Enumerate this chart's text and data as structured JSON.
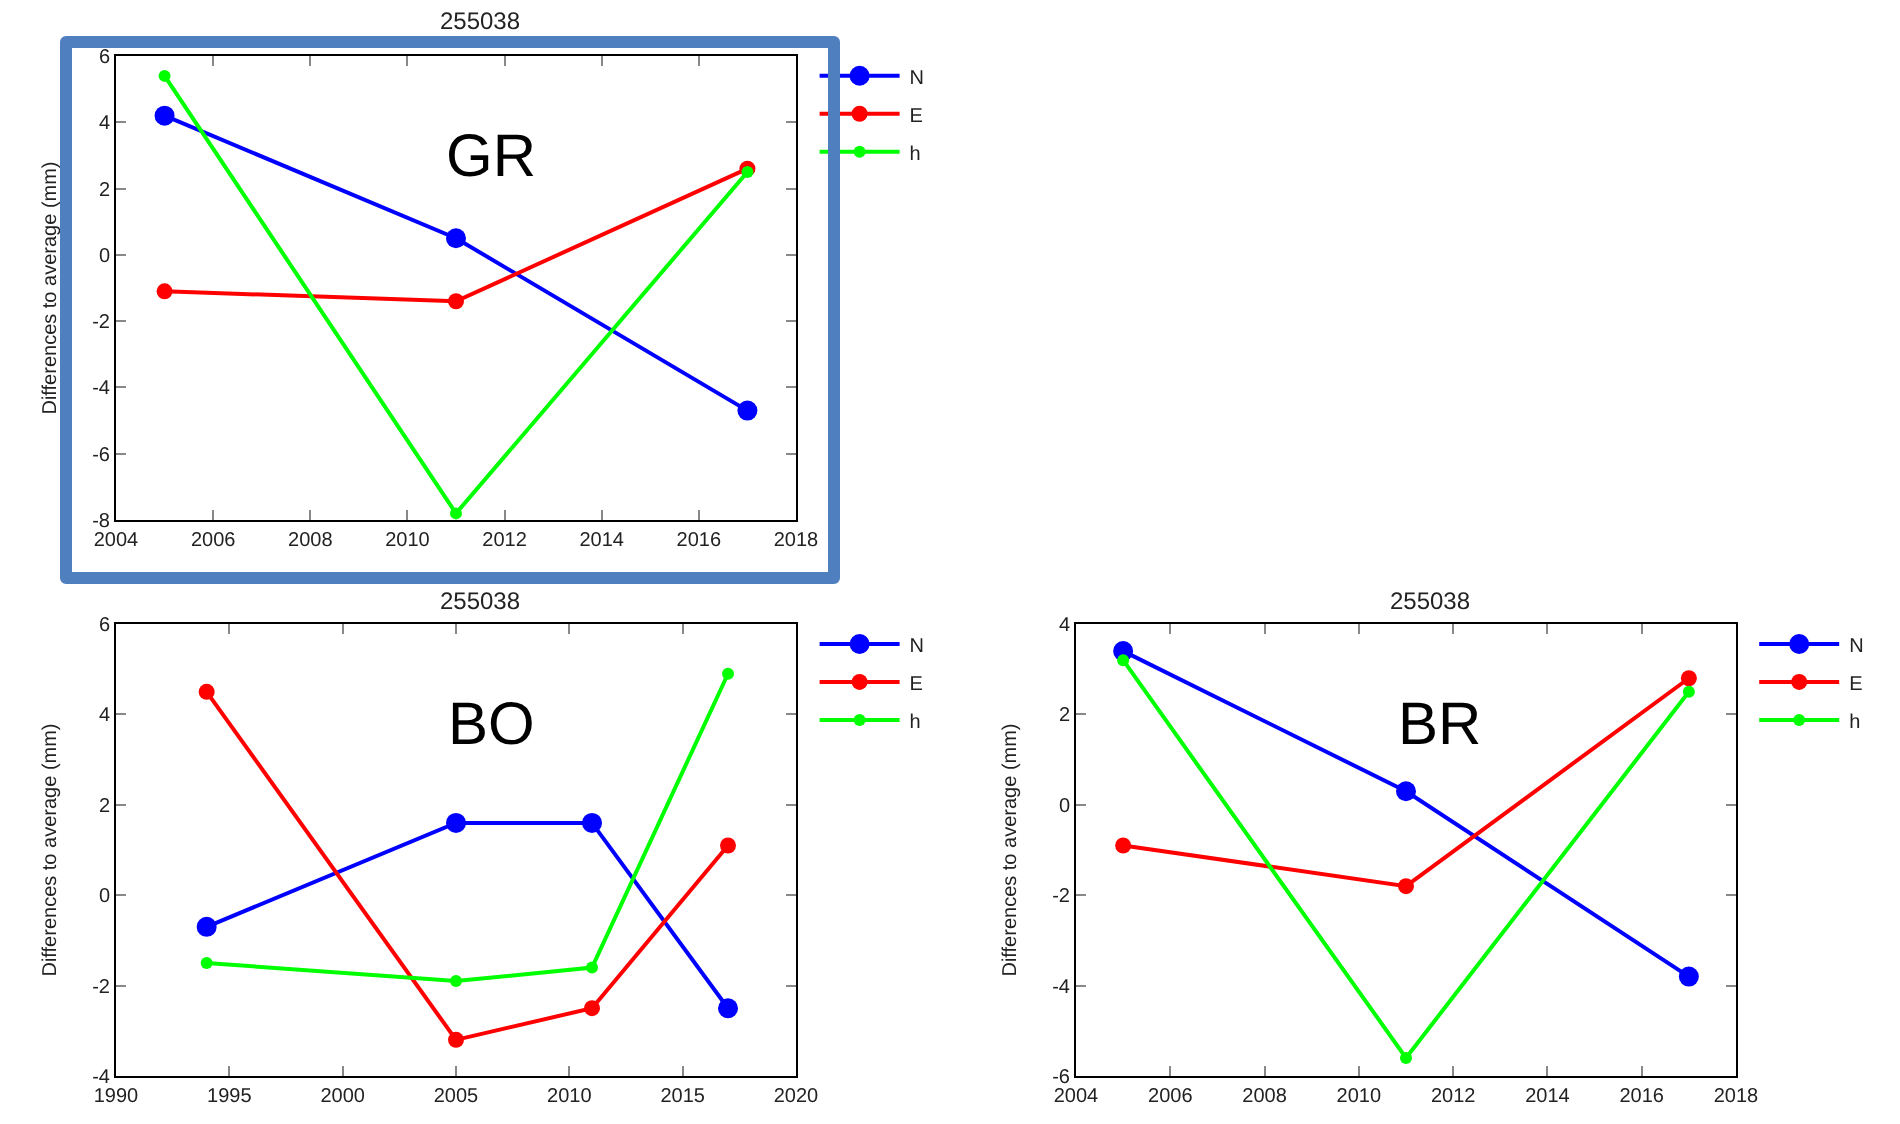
{
  "chart_data": [
    {
      "type": "line",
      "title": "255038",
      "ylabel": "Differences to average (mm)",
      "annotations": [
        "GR"
      ],
      "x": [
        2005,
        2011,
        2017
      ],
      "xlim": [
        2004,
        2018
      ],
      "xticks": [
        2004,
        2006,
        2008,
        2010,
        2012,
        2014,
        2016,
        2018
      ],
      "ylim": [
        -8,
        6
      ],
      "yticks": [
        -8,
        -6,
        -4,
        -2,
        0,
        2,
        4,
        6
      ],
      "legend": "top right",
      "marker": "circle",
      "line_style": "solid",
      "series": [
        {
          "name": "N",
          "color": "#0000ff",
          "values": [
            4.2,
            0.5,
            -4.7
          ]
        },
        {
          "name": "E",
          "color": "#ff0000",
          "values": [
            -1.1,
            -1.4,
            2.6
          ]
        },
        {
          "name": "h",
          "color": "#00ff00",
          "values": [
            5.4,
            -7.8,
            2.5
          ]
        }
      ]
    },
    {
      "type": "line",
      "title": "255038",
      "ylabel": "Differences to average (mm)",
      "annotations": [
        "BO"
      ],
      "x": [
        1994,
        2005,
        2011,
        2017
      ],
      "xlim": [
        1990,
        2020
      ],
      "xticks": [
        1990,
        1995,
        2000,
        2005,
        2010,
        2015,
        2020
      ],
      "ylim": [
        -4,
        6
      ],
      "yticks": [
        -4,
        -2,
        0,
        2,
        4,
        6
      ],
      "legend": "top right",
      "marker": "circle",
      "line_style": "solid",
      "series": [
        {
          "name": "N",
          "color": "#0000ff",
          "values": [
            -0.7,
            1.6,
            1.6,
            -2.5
          ]
        },
        {
          "name": "E",
          "color": "#ff0000",
          "values": [
            4.5,
            -3.2,
            -2.5,
            1.1
          ]
        },
        {
          "name": "h",
          "color": "#00ff00",
          "values": [
            -1.5,
            -1.9,
            -1.6,
            4.9
          ]
        }
      ]
    },
    {
      "type": "line",
      "title": "255038",
      "ylabel": "Differences to average (mm)",
      "annotations": [
        "BR"
      ],
      "x": [
        2005,
        2011,
        2017
      ],
      "xlim": [
        2004,
        2018
      ],
      "xticks": [
        2004,
        2006,
        2008,
        2010,
        2012,
        2014,
        2016,
        2018
      ],
      "ylim": [
        -6,
        4
      ],
      "yticks": [
        -6,
        -4,
        -2,
        0,
        2,
        4
      ],
      "legend": "top right",
      "marker": "circle",
      "line_style": "solid",
      "series": [
        {
          "name": "N",
          "color": "#0000ff",
          "values": [
            3.4,
            0.3,
            -3.8
          ]
        },
        {
          "name": "E",
          "color": "#ff0000",
          "values": [
            -0.9,
            -1.8,
            2.8
          ]
        },
        {
          "name": "h",
          "color": "#00ff00",
          "values": [
            3.2,
            -5.6,
            2.5
          ]
        }
      ]
    }
  ]
}
